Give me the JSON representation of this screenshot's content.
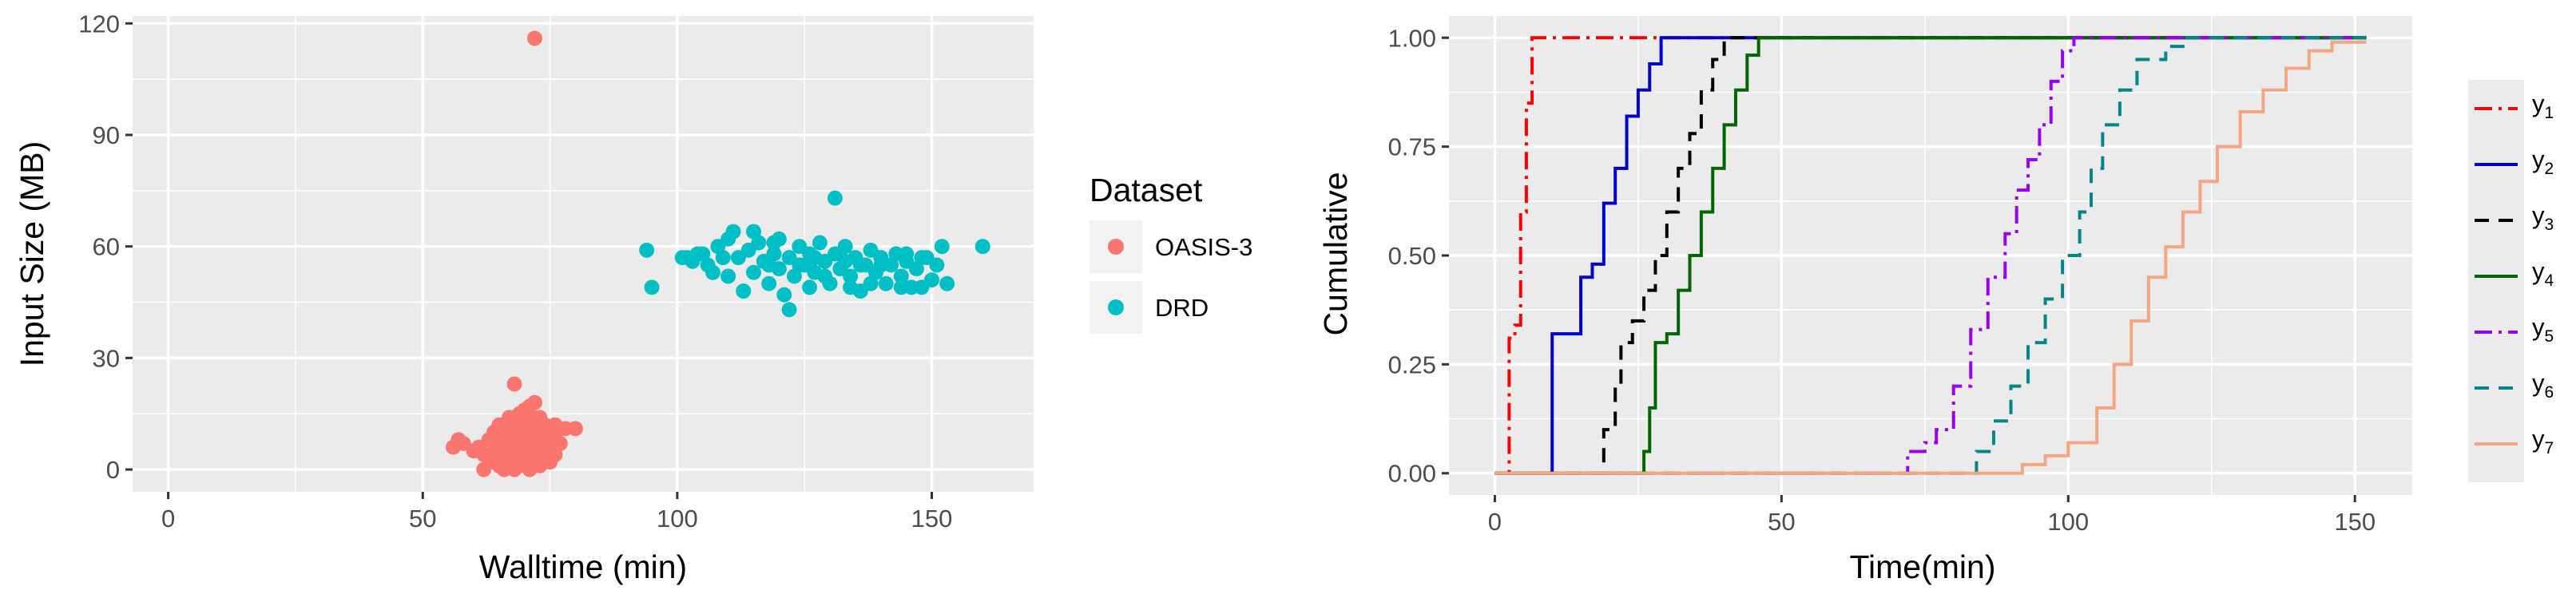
{
  "chart_data": [
    {
      "type": "scatter",
      "xlabel": "Walltime (min)",
      "ylabel": "Input Size (MB)",
      "xlim": [
        -7,
        170
      ],
      "ylim": [
        -6,
        122
      ],
      "xticks": [
        0,
        50,
        100,
        150
      ],
      "xtick_labels": [
        "0",
        "50",
        "100",
        "150"
      ],
      "yticks": [
        0,
        30,
        60,
        90,
        120
      ],
      "ytick_labels": [
        "0",
        "30",
        "60",
        "90",
        "120"
      ],
      "grid": true,
      "legend": {
        "title": "Dataset",
        "position": "right"
      },
      "series": [
        {
          "name": "OASIS-3",
          "color": "#F8766D",
          "points": [
            [
              72,
              116
            ],
            [
              68,
              23
            ],
            [
              71,
              17
            ],
            [
              73,
              14
            ],
            [
              76,
              12
            ],
            [
              78,
              11
            ],
            [
              80,
              11
            ],
            [
              56,
              6
            ],
            [
              57,
              8
            ],
            [
              58,
              7
            ],
            [
              60,
              5
            ],
            [
              61,
              6
            ],
            [
              62,
              4
            ],
            [
              63,
              3
            ],
            [
              64,
              2
            ],
            [
              64,
              5
            ],
            [
              65,
              1
            ],
            [
              65,
              7
            ],
            [
              66,
              0
            ],
            [
              66,
              4
            ],
            [
              66,
              9
            ],
            [
              67,
              2
            ],
            [
              67,
              6
            ],
            [
              67,
              11
            ],
            [
              68,
              0
            ],
            [
              68,
              3
            ],
            [
              68,
              8
            ],
            [
              68,
              13
            ],
            [
              69,
              1
            ],
            [
              69,
              5
            ],
            [
              69,
              10
            ],
            [
              69,
              15
            ],
            [
              70,
              2
            ],
            [
              70,
              7
            ],
            [
              70,
              12
            ],
            [
              71,
              0
            ],
            [
              71,
              4
            ],
            [
              71,
              9
            ],
            [
              71,
              14
            ],
            [
              72,
              2
            ],
            [
              72,
              6
            ],
            [
              72,
              11
            ],
            [
              73,
              1
            ],
            [
              73,
              5
            ],
            [
              73,
              9
            ],
            [
              74,
              3
            ],
            [
              74,
              8
            ],
            [
              74,
              12
            ],
            [
              75,
              6
            ],
            [
              75,
              10
            ],
            [
              76,
              4
            ],
            [
              76,
              9
            ],
            [
              77,
              7
            ],
            [
              62,
              0
            ],
            [
              63,
              8
            ],
            [
              64,
              10
            ],
            [
              65,
              12
            ],
            [
              67,
              14
            ],
            [
              70,
              16
            ],
            [
              75,
              2
            ],
            [
              72,
              18
            ],
            [
              66,
              6
            ],
            [
              69,
              7
            ],
            [
              71,
              6
            ],
            [
              73,
              3
            ]
          ]
        },
        {
          "name": "DRD",
          "color": "#00BFC4",
          "points": [
            [
              131,
              73
            ],
            [
              94,
              59
            ],
            [
              95,
              49
            ],
            [
              160,
              60
            ],
            [
              102,
              57
            ],
            [
              104,
              58
            ],
            [
              106,
              55
            ],
            [
              108,
              60
            ],
            [
              110,
              62
            ],
            [
              110,
              52
            ],
            [
              112,
              57
            ],
            [
              113,
              48
            ],
            [
              114,
              59
            ],
            [
              115,
              53
            ],
            [
              116,
              61
            ],
            [
              117,
              56
            ],
            [
              118,
              50
            ],
            [
              119,
              58
            ],
            [
              120,
              54
            ],
            [
              120,
              62
            ],
            [
              121,
              47
            ],
            [
              122,
              57
            ],
            [
              123,
              52
            ],
            [
              124,
              60
            ],
            [
              125,
              55
            ],
            [
              126,
              49
            ],
            [
              126,
              58
            ],
            [
              127,
              53
            ],
            [
              128,
              61
            ],
            [
              129,
              56
            ],
            [
              130,
              50
            ],
            [
              131,
              58
            ],
            [
              132,
              54
            ],
            [
              133,
              60
            ],
            [
              134,
              52
            ],
            [
              135,
              57
            ],
            [
              136,
              48
            ],
            [
              137,
              55
            ],
            [
              138,
              59
            ],
            [
              139,
              53
            ],
            [
              140,
              57
            ],
            [
              141,
              50
            ],
            [
              142,
              55
            ],
            [
              143,
              58
            ],
            [
              144,
              52
            ],
            [
              145,
              56
            ],
            [
              146,
              49
            ],
            [
              147,
              54
            ],
            [
              148,
              57
            ],
            [
              150,
              51
            ],
            [
              151,
              55
            ],
            [
              152,
              60
            ],
            [
              153,
              50
            ],
            [
              148,
              49
            ],
            [
              144,
              49
            ],
            [
              138,
              50
            ],
            [
              129,
              52
            ],
            [
              122,
              43
            ],
            [
              118,
              55
            ],
            [
              115,
              64
            ],
            [
              111,
              64
            ],
            [
              109,
              57
            ],
            [
              107,
              53
            ],
            [
              105,
              58
            ],
            [
              103,
              56
            ],
            [
              101,
              57
            ],
            [
              119,
              61
            ],
            [
              124,
              55
            ],
            [
              127,
              57
            ],
            [
              133,
              56
            ],
            [
              136,
              55
            ],
            [
              140,
              55
            ],
            [
              145,
              58
            ],
            [
              149,
              57
            ],
            [
              134,
              49
            ]
          ]
        }
      ]
    },
    {
      "type": "line",
      "xlabel": "Time(min)",
      "ylabel": "Cumulative",
      "xlim": [
        -8,
        160
      ],
      "ylim": [
        -0.05,
        1.05
      ],
      "xticks": [
        0,
        50,
        100,
        150
      ],
      "xtick_labels": [
        "0",
        "50",
        "100",
        "150"
      ],
      "yticks": [
        0,
        0.25,
        0.5,
        0.75,
        1
      ],
      "ytick_labels": [
        "0.00",
        "0.25",
        "0.50",
        "0.75",
        "1.00"
      ],
      "grid": true,
      "legend": {
        "position": "right"
      },
      "series": [
        {
          "name": "y",
          "sub": "1",
          "color": "#FF0000",
          "dash": "22,8,4,8",
          "points": [
            [
              0,
              0
            ],
            [
              2,
              0
            ],
            [
              2.5,
              0.31
            ],
            [
              3.5,
              0.34
            ],
            [
              4.5,
              0.6
            ],
            [
              5.5,
              0.85
            ],
            [
              6.5,
              1
            ],
            [
              152,
              1
            ]
          ]
        },
        {
          "name": "y",
          "sub": "2",
          "color": "#0000CC",
          "dash": "",
          "points": [
            [
              0,
              0
            ],
            [
              9,
              0
            ],
            [
              10,
              0.32
            ],
            [
              13,
              0.32
            ],
            [
              15,
              0.45
            ],
            [
              17,
              0.48
            ],
            [
              19,
              0.62
            ],
            [
              21,
              0.7
            ],
            [
              23,
              0.82
            ],
            [
              25,
              0.88
            ],
            [
              27,
              0.94
            ],
            [
              29,
              1
            ],
            [
              152,
              1
            ]
          ]
        },
        {
          "name": "y",
          "sub": "3",
          "color": "#000000",
          "dash": "18,12",
          "points": [
            [
              0,
              0
            ],
            [
              18,
              0
            ],
            [
              19,
              0.1
            ],
            [
              21,
              0.2
            ],
            [
              22,
              0.3
            ],
            [
              24,
              0.35
            ],
            [
              26,
              0.42
            ],
            [
              28,
              0.5
            ],
            [
              30,
              0.6
            ],
            [
              32,
              0.7
            ],
            [
              34,
              0.78
            ],
            [
              36,
              0.88
            ],
            [
              38,
              0.95
            ],
            [
              40,
              1
            ],
            [
              152,
              1
            ]
          ]
        },
        {
          "name": "y",
          "sub": "4",
          "color": "#006600",
          "dash": "",
          "points": [
            [
              0,
              0
            ],
            [
              25,
              0
            ],
            [
              26,
              0.05
            ],
            [
              27,
              0.15
            ],
            [
              28,
              0.3
            ],
            [
              30,
              0.32
            ],
            [
              32,
              0.42
            ],
            [
              34,
              0.5
            ],
            [
              36,
              0.6
            ],
            [
              38,
              0.7
            ],
            [
              40,
              0.8
            ],
            [
              42,
              0.88
            ],
            [
              44,
              0.96
            ],
            [
              46,
              1
            ],
            [
              152,
              1
            ]
          ]
        },
        {
          "name": "y",
          "sub": "5",
          "color": "#9900EE",
          "dash": "22,8,4,8",
          "points": [
            [
              0,
              0
            ],
            [
              70,
              0
            ],
            [
              72,
              0.05
            ],
            [
              75,
              0.07
            ],
            [
              77,
              0.1
            ],
            [
              80,
              0.2
            ],
            [
              83,
              0.33
            ],
            [
              86,
              0.45
            ],
            [
              89,
              0.55
            ],
            [
              91,
              0.65
            ],
            [
              93,
              0.72
            ],
            [
              95,
              0.8
            ],
            [
              97,
              0.9
            ],
            [
              99,
              0.97
            ],
            [
              101,
              1
            ],
            [
              152,
              1
            ]
          ]
        },
        {
          "name": "y",
          "sub": "6",
          "color": "#00868B",
          "dash": "18,12",
          "points": [
            [
              0,
              0
            ],
            [
              82,
              0
            ],
            [
              84,
              0.05
            ],
            [
              87,
              0.12
            ],
            [
              90,
              0.2
            ],
            [
              93,
              0.3
            ],
            [
              96,
              0.4
            ],
            [
              99,
              0.5
            ],
            [
              102,
              0.6
            ],
            [
              104,
              0.7
            ],
            [
              106,
              0.8
            ],
            [
              109,
              0.88
            ],
            [
              112,
              0.95
            ],
            [
              117,
              0.98
            ],
            [
              120,
              1
            ],
            [
              152,
              1
            ]
          ]
        },
        {
          "name": "y",
          "sub": "7",
          "color": "#F4A582",
          "dash": "",
          "points": [
            [
              0,
              0
            ],
            [
              90,
              0
            ],
            [
              92,
              0.02
            ],
            [
              96,
              0.04
            ],
            [
              100,
              0.07
            ],
            [
              105,
              0.15
            ],
            [
              108,
              0.25
            ],
            [
              111,
              0.35
            ],
            [
              114,
              0.45
            ],
            [
              117,
              0.52
            ],
            [
              120,
              0.6
            ],
            [
              123,
              0.67
            ],
            [
              126,
              0.75
            ],
            [
              130,
              0.83
            ],
            [
              134,
              0.88
            ],
            [
              138,
              0.93
            ],
            [
              142,
              0.97
            ],
            [
              146,
              0.99
            ],
            [
              152,
              0.99
            ]
          ]
        }
      ]
    }
  ]
}
